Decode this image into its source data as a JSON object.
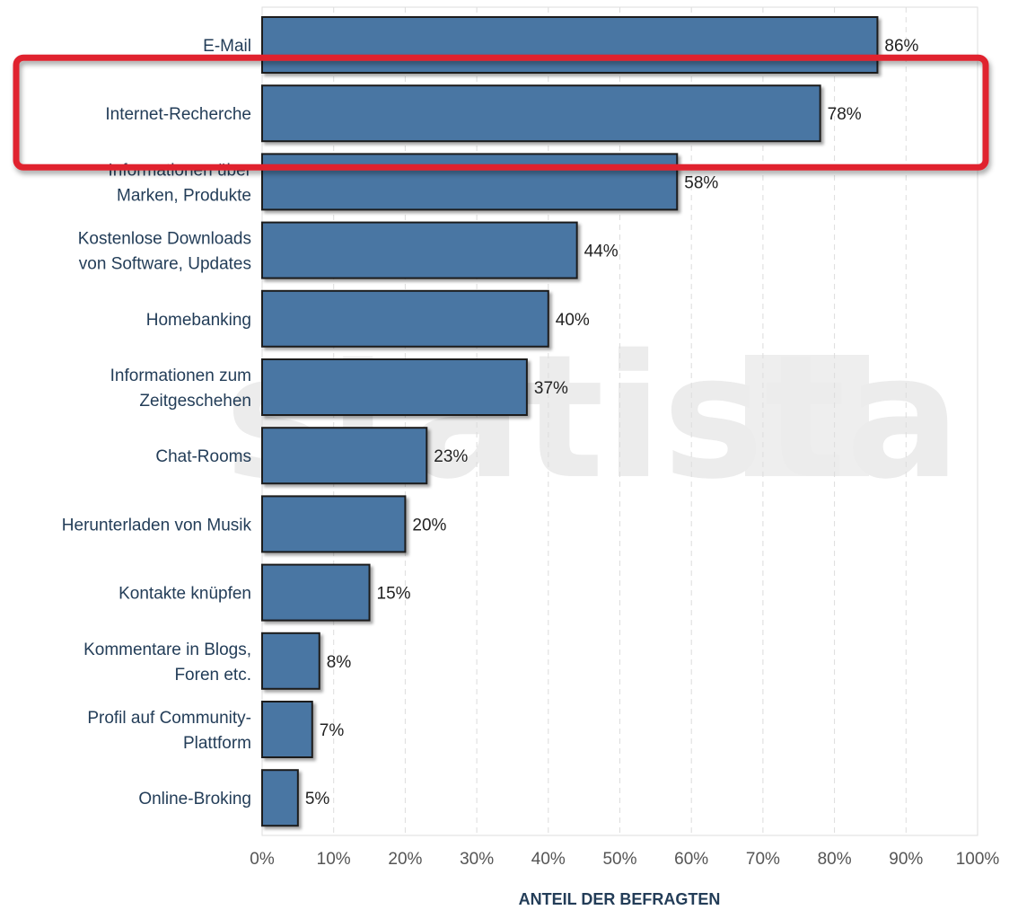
{
  "chart_data": {
    "type": "bar",
    "orientation": "horizontal",
    "categories": [
      [
        "E-Mail"
      ],
      [
        "Internet-Recherche"
      ],
      [
        "Informationen über",
        "Marken, Produkte"
      ],
      [
        "Kostenlose Downloads",
        "von Software, Updates"
      ],
      [
        "Homebanking"
      ],
      [
        "Informationen zum",
        "Zeitgeschehen"
      ],
      [
        "Chat-Rooms"
      ],
      [
        "Herunterladen von Musik"
      ],
      [
        "Kontakte knüpfen"
      ],
      [
        "Kommentare in Blogs,",
        "Foren etc."
      ],
      [
        "Profil auf Community-",
        "Plattform"
      ],
      [
        "Online-Broking"
      ]
    ],
    "values": [
      86,
      78,
      58,
      44,
      40,
      37,
      23,
      20,
      15,
      8,
      7,
      5
    ],
    "value_labels": [
      "86%",
      "78%",
      "58%",
      "44%",
      "40%",
      "37%",
      "23%",
      "20%",
      "15%",
      "8%",
      "7%",
      "5%"
    ],
    "xlim": [
      0,
      100
    ],
    "xticks": [
      "0%",
      "10%",
      "20%",
      "30%",
      "40%",
      "50%",
      "60%",
      "70%",
      "80%",
      "90%",
      "100%"
    ],
    "xlabel": "ANTEIL DER BEFRAGTEN",
    "ylabel": "",
    "title": "",
    "grid": "vertical-dashed",
    "highlighted_category_index": 1,
    "watermark_text": "statista",
    "colors": {
      "bar": "#4a76a3",
      "bar_border": "#1b1b1b",
      "highlight_frame": "#e0202e",
      "grid": "#dddddd",
      "category_text": "#233d58",
      "watermark": "#ececec"
    }
  }
}
